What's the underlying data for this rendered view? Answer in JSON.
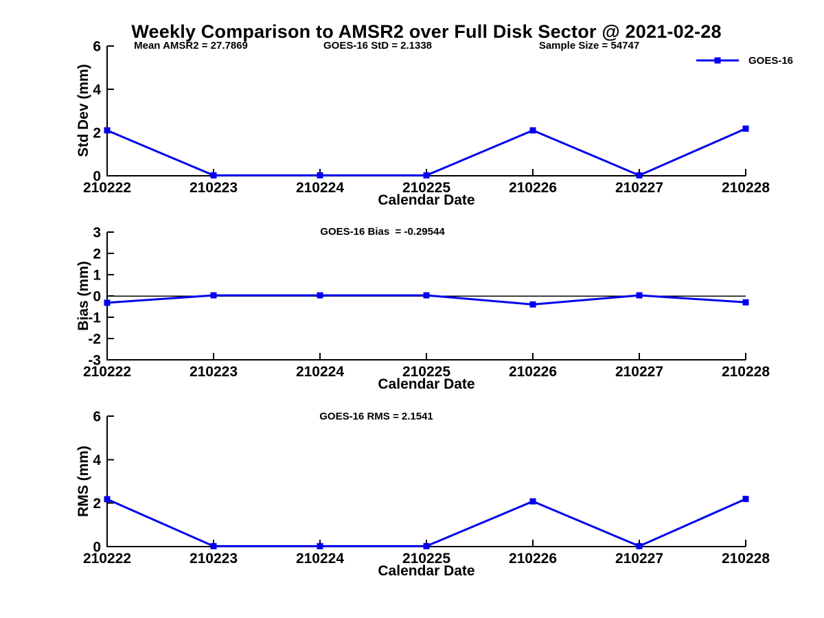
{
  "page": {
    "title": "Weekly Comparison to AMSR2 over Full Disk Sector @ 2021-02-28",
    "background": "#ffffff",
    "line_color": "#0000ee",
    "axis_color": "#000000"
  },
  "legend": {
    "label": "GOES-16"
  },
  "chart_data": [
    {
      "type": "line",
      "annotations": [
        "Mean AMSR2 = 27.7869",
        "GOES-16 StD = 2.1338",
        "Sample Size = 54747"
      ],
      "categories": [
        "210222",
        "210223",
        "210224",
        "210225",
        "210226",
        "210227",
        "210228"
      ],
      "series": [
        {
          "name": "GOES-16",
          "color": "#0000ee",
          "marker": "square",
          "values": [
            2.1,
            0.02,
            0.02,
            0.02,
            2.1,
            0.02,
            2.18
          ]
        }
      ],
      "xlabel": "Calendar Date",
      "ylabel": "Std Dev (mm)",
      "ylim": [
        0,
        6
      ],
      "yticks": [
        0,
        2,
        4,
        6
      ],
      "zero_line": false,
      "grid": false,
      "legend_position": "top-right"
    },
    {
      "type": "line",
      "annotations": [
        "GOES-16 Bias  = -0.29544"
      ],
      "categories": [
        "210222",
        "210223",
        "210224",
        "210225",
        "210226",
        "210227",
        "210228"
      ],
      "series": [
        {
          "name": "GOES-16",
          "color": "#0000ee",
          "marker": "square",
          "values": [
            -0.32,
            0.03,
            0.03,
            0.03,
            -0.4,
            0.03,
            -0.3
          ]
        }
      ],
      "xlabel": "Calendar Date",
      "ylabel": "Bias (mm)",
      "ylim": [
        -3,
        3
      ],
      "yticks": [
        -3,
        -2,
        -1,
        0,
        1,
        2,
        3
      ],
      "zero_line": true,
      "grid": false,
      "legend_position": "none"
    },
    {
      "type": "line",
      "annotations": [
        "GOES-16 RMS = 2.1541"
      ],
      "categories": [
        "210222",
        "210223",
        "210224",
        "210225",
        "210226",
        "210227",
        "210228"
      ],
      "series": [
        {
          "name": "GOES-16",
          "color": "#0000ee",
          "marker": "square",
          "values": [
            2.18,
            0.02,
            0.02,
            0.02,
            2.08,
            0.02,
            2.19
          ]
        }
      ],
      "xlabel": "Calendar Date",
      "ylabel": "RMS (mm)",
      "ylim": [
        0,
        6
      ],
      "yticks": [
        0,
        2,
        4,
        6
      ],
      "zero_line": false,
      "grid": false,
      "legend_position": "none"
    }
  ]
}
